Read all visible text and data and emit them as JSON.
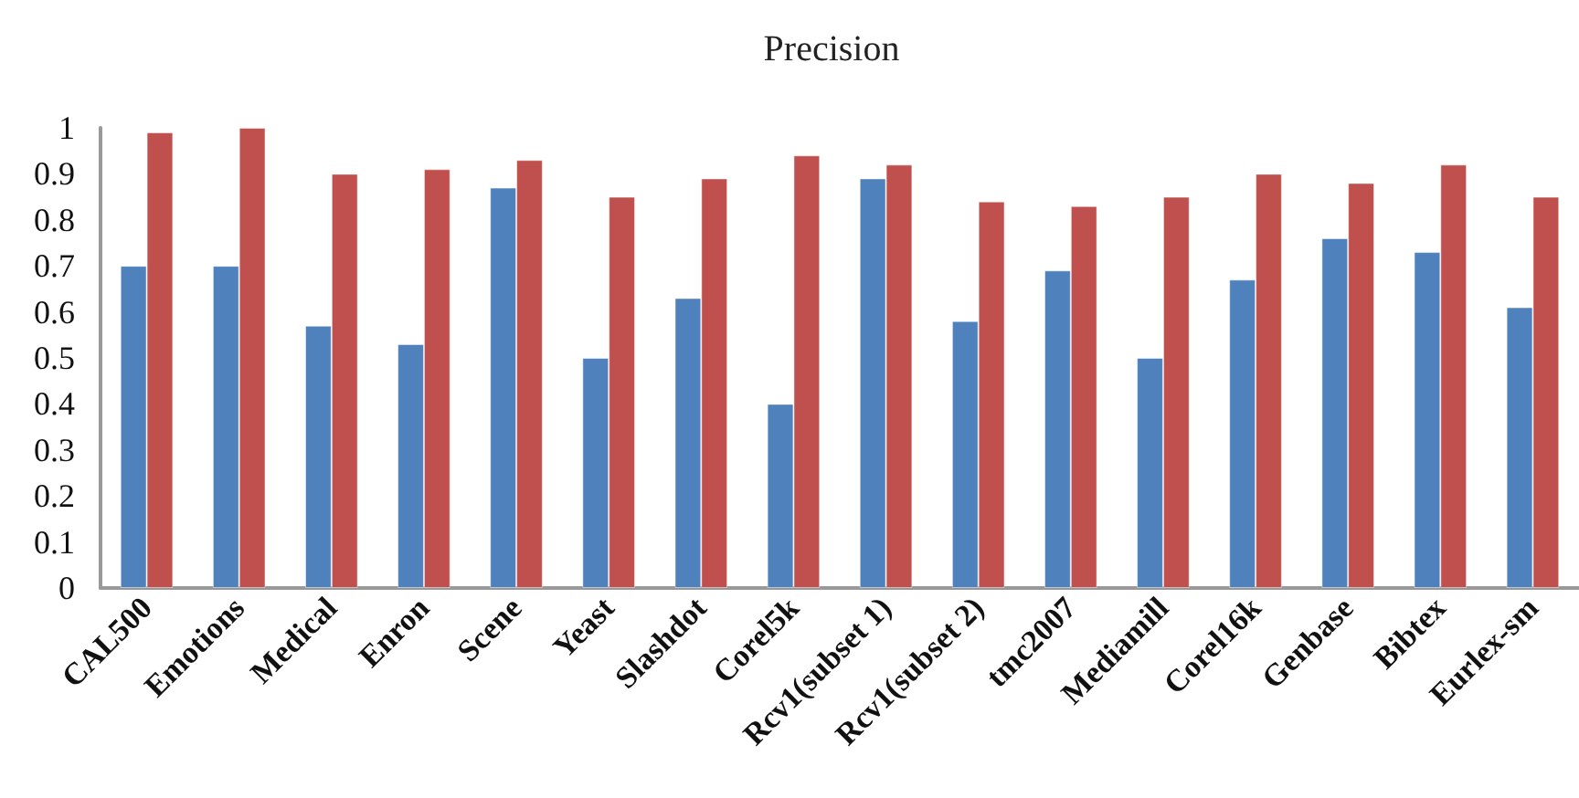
{
  "chart_data": {
    "type": "bar",
    "title": "Precision",
    "categories": [
      "CAL500",
      "Emotions",
      "Medical",
      "Enron",
      "Scene",
      "Yeast",
      "Slashdot",
      "Corel5k",
      "Rcv1(subset 1)",
      "Rcv1(subset 2)",
      "tmc2007",
      "Mediamill",
      "Corel16k",
      "Genbase",
      "Bibtex",
      "Eurlex-sm"
    ],
    "series": [
      {
        "color": "#4f81bd",
        "values": [
          0.7,
          0.7,
          0.57,
          0.53,
          0.87,
          0.5,
          0.63,
          0.4,
          0.89,
          0.58,
          0.69,
          0.5,
          0.67,
          0.76,
          0.73,
          0.61
        ]
      },
      {
        "color": "#c0504d",
        "values": [
          0.99,
          1.0,
          0.9,
          0.91,
          0.93,
          0.85,
          0.89,
          0.94,
          0.92,
          0.84,
          0.83,
          0.85,
          0.9,
          0.88,
          0.92,
          0.85
        ]
      }
    ],
    "ylim": [
      0,
      1
    ],
    "yticks": [
      0,
      0.1,
      0.2,
      0.3,
      0.4,
      0.5,
      0.6,
      0.7,
      0.8,
      0.9,
      1
    ],
    "grid": false
  }
}
